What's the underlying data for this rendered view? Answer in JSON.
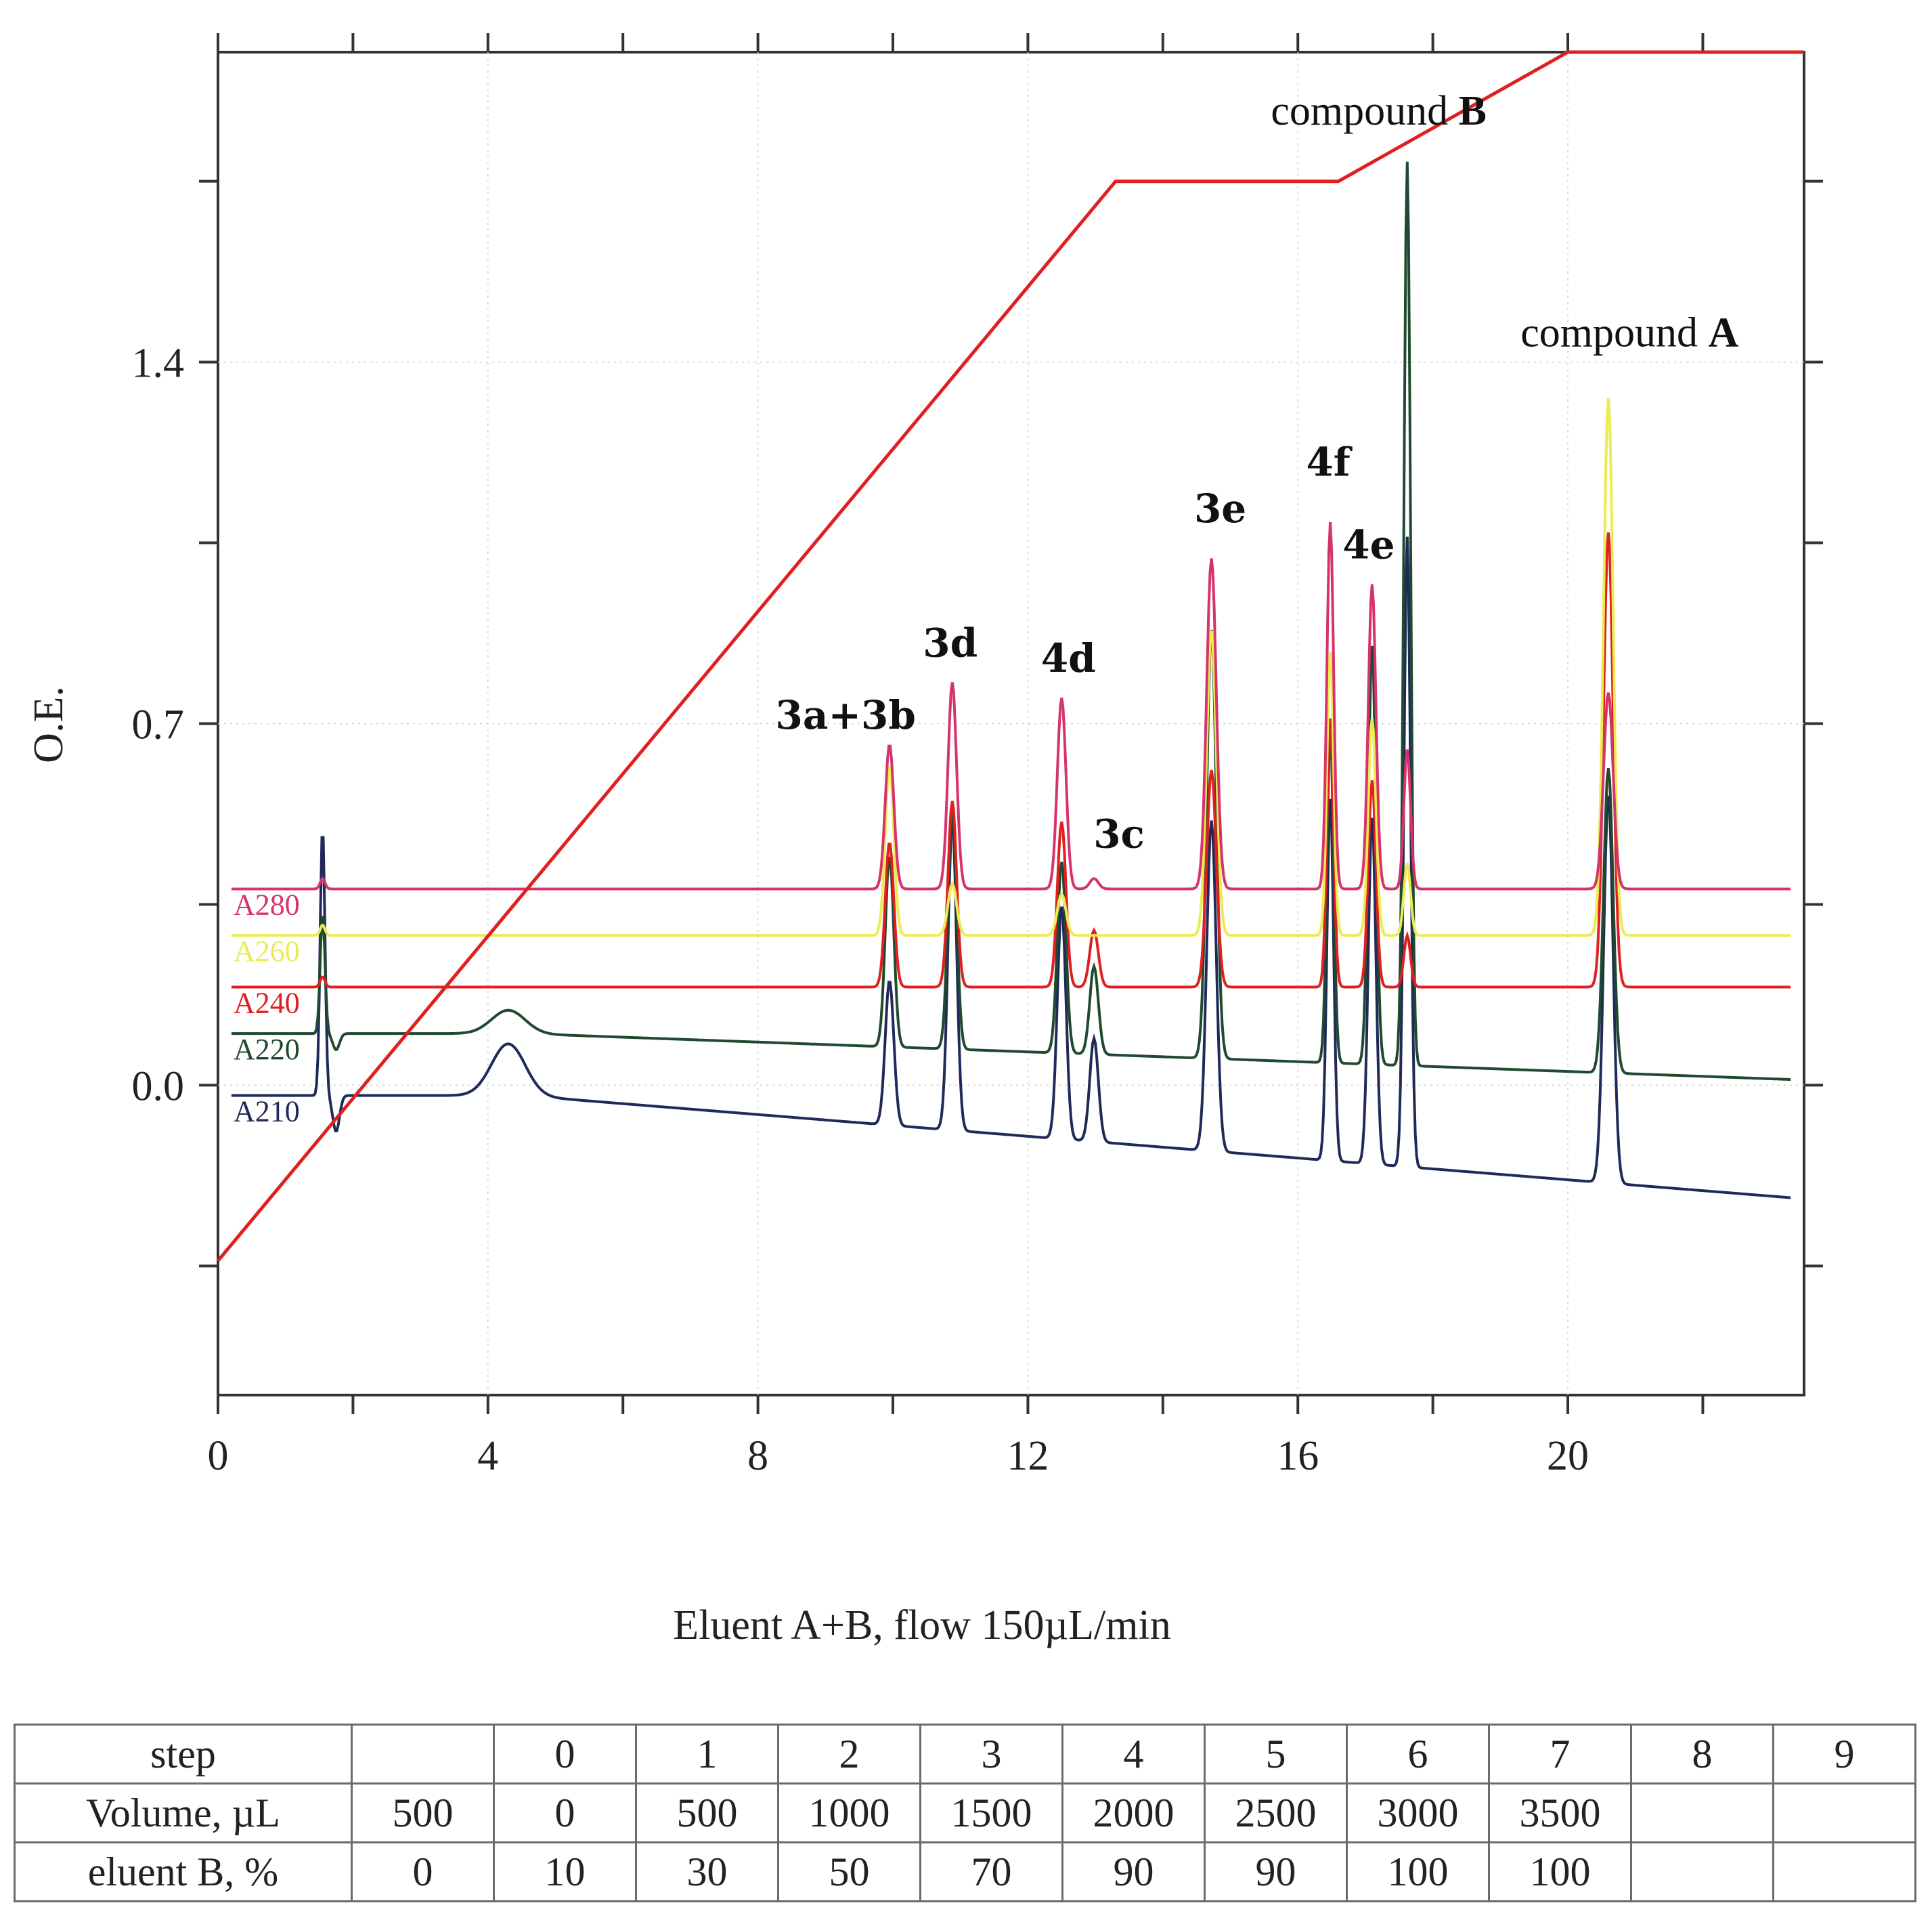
{
  "chart_data": {
    "type": "line",
    "title": "",
    "xlabel": "Eluent A+B, flow 150µL/min",
    "ylabel": "O.E.",
    "xlim": [
      0,
      23.5
    ],
    "ylim": [
      -0.6,
      2.0
    ],
    "x_ticks": [
      0,
      4,
      8,
      12,
      16,
      20
    ],
    "x_tick_labels": [
      "0",
      "4",
      "8",
      "12",
      "16",
      "20"
    ],
    "y_ticks": [
      0.0,
      0.7,
      1.4
    ],
    "y_tick_labels": [
      "0.0",
      "0.7",
      "1.4"
    ],
    "x_minor_ticks": [
      2,
      6,
      10,
      14,
      18,
      22
    ],
    "y_minor_ticks": [
      -0.35,
      0.35,
      1.05,
      1.75
    ],
    "gradient": {
      "name": "eluent B gradient",
      "color": "#e02020",
      "x": [
        0,
        13.3,
        16.6,
        20.0,
        23.5
      ],
      "y": [
        -0.34,
        1.75,
        1.75,
        2.0,
        2.0
      ]
    },
    "peaks": [
      {
        "label": "3a+3b",
        "x": 9.95
      },
      {
        "label": "3d",
        "x": 10.88
      },
      {
        "label": "4d",
        "x": 12.5
      },
      {
        "label": "3c",
        "x": 12.98
      },
      {
        "label": "3e",
        "x": 14.72
      },
      {
        "label": "4f",
        "x": 16.48
      },
      {
        "label": "4e",
        "x": 17.1
      },
      {
        "label": "",
        "x": 17.62
      },
      {
        "label": "compound A",
        "x": 20.6
      }
    ],
    "annotations": [
      {
        "text_main": "compound ",
        "text_bold": "B",
        "x": 15.6,
        "y": 1.86
      },
      {
        "text_main": "compound ",
        "text_bold": "A",
        "x": 19.3,
        "y": 1.43
      }
    ],
    "peak_labels": [
      {
        "text": "3a+3b",
        "x": 9.3,
        "y": 0.69
      },
      {
        "text": "3d",
        "x": 10.85,
        "y": 0.83
      },
      {
        "text": "4d",
        "x": 12.6,
        "y": 0.8
      },
      {
        "text": "3c",
        "x": 13.35,
        "y": 0.46
      },
      {
        "text": "3e",
        "x": 14.85,
        "y": 1.09
      },
      {
        "text": "4f",
        "x": 16.45,
        "y": 1.18
      },
      {
        "text": "4e",
        "x": 17.05,
        "y": 1.02
      }
    ],
    "series": [
      {
        "name": "A280",
        "color": "#d6336c",
        "baseline": 0.38,
        "drift": 0,
        "heights": [
          0.28,
          0.4,
          0.37,
          0.02,
          0.64,
          0.71,
          0.59,
          0.27,
          0.38
        ]
      },
      {
        "name": "A260",
        "color": "#ecec52",
        "baseline": 0.29,
        "drift": 0,
        "heights": [
          0.33,
          0.1,
          0.08,
          0.0,
          0.59,
          0.55,
          0.42,
          0.14,
          1.04
        ]
      },
      {
        "name": "A240",
        "color": "#e02020",
        "baseline": 0.19,
        "drift": 0,
        "heights": [
          0.28,
          0.36,
          0.32,
          0.11,
          0.42,
          0.52,
          0.4,
          0.1,
          0.88
        ]
      },
      {
        "name": "A220",
        "color": "#1f4a2e",
        "baseline": 0.1,
        "drift": 0.09,
        "heights": [
          0.37,
          0.46,
          0.37,
          0.17,
          0.83,
          0.64,
          0.81,
          1.75,
          0.59
        ]
      },
      {
        "name": "A210",
        "color": "#1f2a5a",
        "baseline": -0.02,
        "drift": 0.2,
        "heights": [
          0.28,
          0.6,
          0.45,
          0.2,
          0.64,
          0.7,
          0.67,
          1.22,
          0.75
        ]
      }
    ]
  },
  "table": {
    "rows": [
      {
        "header": "step",
        "cells": [
          "",
          "0",
          "1",
          "2",
          "3",
          "4",
          "5",
          "6",
          "7",
          "8",
          "9"
        ]
      },
      {
        "header": "Volume, µL",
        "cells": [
          "500",
          "0",
          "500",
          "1000",
          "1500",
          "2000",
          "2500",
          "3000",
          "3500",
          "",
          ""
        ]
      },
      {
        "header": "eluent B, %",
        "cells": [
          "0",
          "10",
          "30",
          "50",
          "70",
          "90",
          "90",
          "100",
          "100",
          "",
          ""
        ]
      }
    ]
  }
}
